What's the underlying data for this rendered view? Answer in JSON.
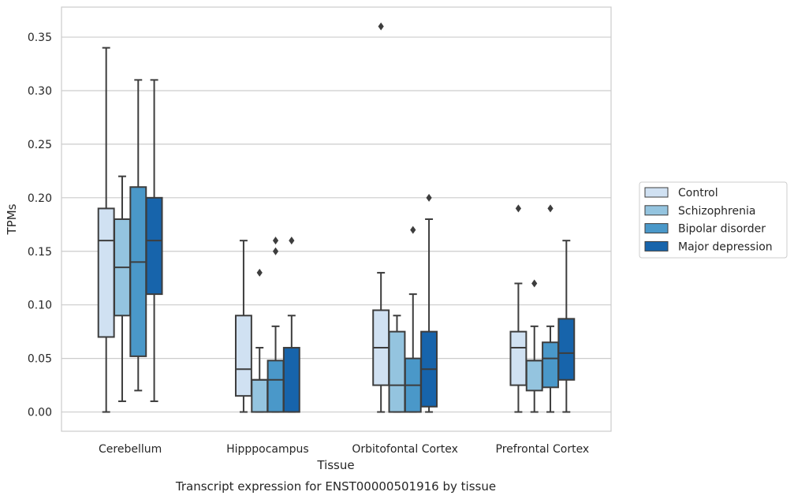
{
  "chart_data": {
    "type": "box",
    "title": "Transcript expression for ENST00000501916 by tissue",
    "xlabel": "Tissue",
    "ylabel": "TPMs",
    "ylim": [
      -0.018,
      0.378
    ],
    "yticks": [
      0.0,
      0.05,
      0.1,
      0.15,
      0.2,
      0.25,
      0.3,
      0.35
    ],
    "ytick_labels": [
      "0.00",
      "0.05",
      "0.10",
      "0.15",
      "0.20",
      "0.25",
      "0.30",
      "0.35"
    ],
    "grid": "horizontal",
    "legend_position": "right",
    "categories": [
      "Cerebellum",
      "Hipppocampus",
      "Orbitofontal Cortex",
      "Prefrontal Cortex"
    ],
    "series": [
      {
        "name": "Control",
        "color": "#d0e1f2",
        "boxes": [
          {
            "whisker_low": 0.0,
            "q1": 0.07,
            "median": 0.16,
            "q3": 0.19,
            "whisker_high": 0.34,
            "outliers": []
          },
          {
            "whisker_low": 0.0,
            "q1": 0.015,
            "median": 0.04,
            "q3": 0.09,
            "whisker_high": 0.16,
            "outliers": []
          },
          {
            "whisker_low": 0.0,
            "q1": 0.025,
            "median": 0.06,
            "q3": 0.095,
            "whisker_high": 0.13,
            "outliers": [
              0.36
            ]
          },
          {
            "whisker_low": 0.0,
            "q1": 0.025,
            "median": 0.06,
            "q3": 0.075,
            "whisker_high": 0.12,
            "outliers": [
              0.19
            ]
          }
        ]
      },
      {
        "name": "Schizophrenia",
        "color": "#94c4df",
        "boxes": [
          {
            "whisker_low": 0.01,
            "q1": 0.09,
            "median": 0.135,
            "q3": 0.18,
            "whisker_high": 0.22,
            "outliers": []
          },
          {
            "whisker_low": 0.0,
            "q1": 0.0,
            "median": 0.03,
            "q3": 0.03,
            "whisker_high": 0.06,
            "outliers": [
              0.13
            ]
          },
          {
            "whisker_low": 0.0,
            "q1": 0.0,
            "median": 0.025,
            "q3": 0.075,
            "whisker_high": 0.09,
            "outliers": []
          },
          {
            "whisker_low": 0.0,
            "q1": 0.02,
            "median": 0.048,
            "q3": 0.048,
            "whisker_high": 0.08,
            "outliers": [
              0.12
            ]
          }
        ]
      },
      {
        "name": "Bipolar disorder",
        "color": "#4a98c9",
        "boxes": [
          {
            "whisker_low": 0.02,
            "q1": 0.052,
            "median": 0.14,
            "q3": 0.21,
            "whisker_high": 0.31,
            "outliers": []
          },
          {
            "whisker_low": 0.0,
            "q1": 0.0,
            "median": 0.03,
            "q3": 0.048,
            "whisker_high": 0.08,
            "outliers": [
              0.15,
              0.16
            ]
          },
          {
            "whisker_low": 0.0,
            "q1": 0.0,
            "median": 0.025,
            "q3": 0.05,
            "whisker_high": 0.11,
            "outliers": [
              0.17
            ]
          },
          {
            "whisker_low": 0.0,
            "q1": 0.023,
            "median": 0.05,
            "q3": 0.065,
            "whisker_high": 0.08,
            "outliers": [
              0.19
            ]
          }
        ]
      },
      {
        "name": "Major depression",
        "color": "#1764ab",
        "boxes": [
          {
            "whisker_low": 0.01,
            "q1": 0.11,
            "median": 0.16,
            "q3": 0.2,
            "whisker_high": 0.31,
            "outliers": []
          },
          {
            "whisker_low": 0.0,
            "q1": 0.0,
            "median": 0.0,
            "q3": 0.06,
            "whisker_high": 0.09,
            "outliers": [
              0.16
            ]
          },
          {
            "whisker_low": 0.0,
            "q1": 0.005,
            "median": 0.04,
            "q3": 0.075,
            "whisker_high": 0.18,
            "outliers": [
              0.2
            ]
          },
          {
            "whisker_low": 0.0,
            "q1": 0.03,
            "median": 0.055,
            "q3": 0.087,
            "whisker_high": 0.16,
            "outliers": []
          }
        ]
      }
    ]
  }
}
